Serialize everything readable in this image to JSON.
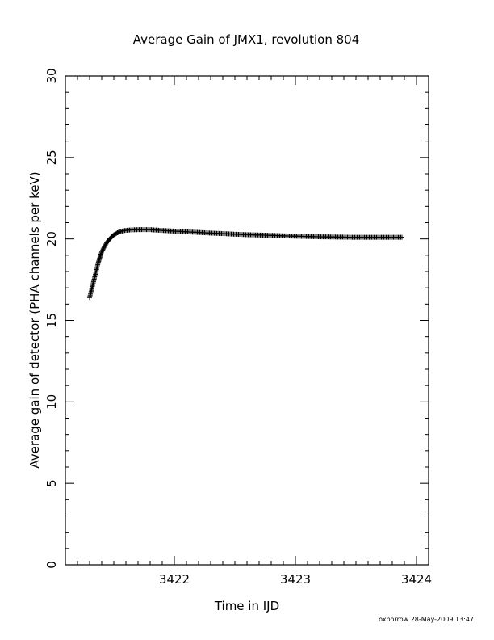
{
  "chart_data": {
    "type": "scatter",
    "title": "Average Gain of JMX1, revolution 804",
    "xlabel": "Time in IJD",
    "ylabel": "Average gain of detector (PHA channels per keV)",
    "xlim": [
      3421.1,
      3424.1
    ],
    "ylim": [
      0,
      30
    ],
    "x_ticks": [
      3422,
      3423,
      3424
    ],
    "y_ticks": [
      0,
      5,
      10,
      15,
      20,
      25,
      30
    ],
    "grid": false,
    "marker": "plus",
    "series": [
      {
        "points": [
          [
            3421.3,
            16.4
          ],
          [
            3421.31,
            16.7
          ],
          [
            3421.32,
            17.0
          ],
          [
            3421.33,
            17.3
          ],
          [
            3421.34,
            17.6
          ],
          [
            3421.35,
            17.9
          ],
          [
            3421.36,
            18.2
          ],
          [
            3421.37,
            18.5
          ],
          [
            3421.38,
            18.75
          ],
          [
            3421.39,
            19.0
          ],
          [
            3421.4,
            19.2
          ],
          [
            3421.42,
            19.5
          ],
          [
            3421.44,
            19.75
          ],
          [
            3421.46,
            19.95
          ],
          [
            3421.48,
            20.1
          ],
          [
            3421.5,
            20.25
          ],
          [
            3421.53,
            20.38
          ],
          [
            3421.56,
            20.47
          ],
          [
            3421.6,
            20.53
          ],
          [
            3421.65,
            20.56
          ],
          [
            3421.7,
            20.57
          ],
          [
            3421.8,
            20.57
          ],
          [
            3421.9,
            20.52
          ],
          [
            3422.0,
            20.48
          ],
          [
            3422.1,
            20.44
          ],
          [
            3422.2,
            20.4
          ],
          [
            3422.3,
            20.36
          ],
          [
            3422.4,
            20.33
          ],
          [
            3422.5,
            20.29
          ],
          [
            3422.6,
            20.26
          ],
          [
            3422.7,
            20.24
          ],
          [
            3422.8,
            20.22
          ],
          [
            3422.9,
            20.19
          ],
          [
            3423.0,
            20.17
          ],
          [
            3423.1,
            20.15
          ],
          [
            3423.2,
            20.13
          ],
          [
            3423.3,
            20.12
          ],
          [
            3423.4,
            20.11
          ],
          [
            3423.5,
            20.1
          ],
          [
            3423.6,
            20.1
          ],
          [
            3423.7,
            20.1
          ],
          [
            3423.8,
            20.1
          ],
          [
            3423.88,
            20.1
          ]
        ]
      }
    ]
  },
  "footer": {
    "stamp": "oxborrow 28-May-2009 13:47"
  }
}
